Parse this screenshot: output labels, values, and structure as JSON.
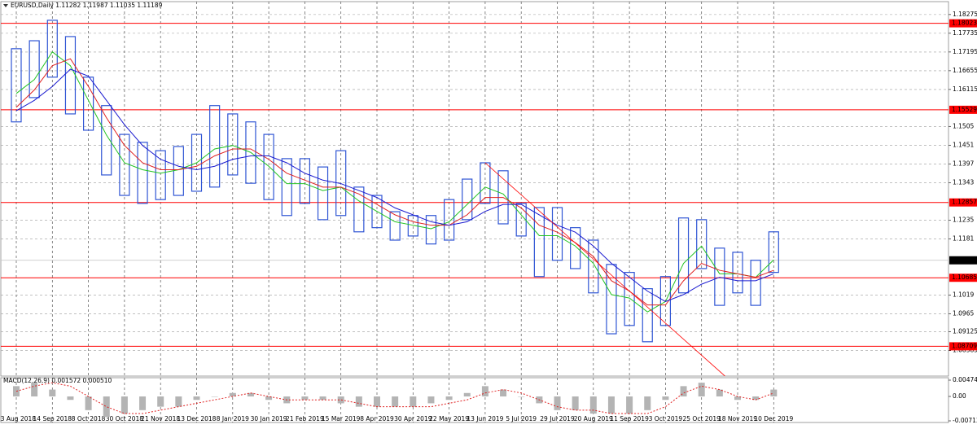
{
  "chart_data": [
    {
      "type": "hilo",
      "title": "EURUSD,Daily  1.11282 1.11987 1.11035 1.11189",
      "categories": [
        "23 Aug 2018",
        null,
        "14 Sep 2018",
        null,
        "8 Oct 2018",
        null,
        "30 Oct 2018",
        null,
        "21 Nov 2018",
        null,
        "13 Dec 2018",
        null,
        "8 Jan 2019",
        null,
        "30 Jan 2019",
        null,
        "21 Feb 2019",
        null,
        "15 Mar 2019",
        null,
        "8 Apr 2019",
        null,
        "30 Apr 2019",
        null,
        "22 May 2019",
        null,
        "13 Jun 2019",
        null,
        "5 Jul 2019",
        null,
        "29 Jul 2019",
        null,
        "20 Aug 2019",
        null,
        "11 Sep 2019",
        null,
        "3 Oct 2019",
        null,
        "25 Oct 2019",
        null,
        "18 Nov 2019",
        null,
        "10 Dec 2019"
      ],
      "high": [
        1.1729,
        1.1752,
        1.1811,
        1.1764,
        1.1647,
        1.1565,
        1.1482,
        1.1459,
        1.1435,
        1.1447,
        1.1482,
        1.1565,
        1.1541,
        1.1518,
        1.1482,
        1.1412,
        1.1412,
        1.1388,
        1.1435,
        1.133,
        1.1306,
        1.1259,
        1.1248,
        1.1248,
        1.1294,
        1.1353,
        1.14,
        1.1377,
        1.1283,
        1.1271,
        1.1271,
        1.1213,
        1.1177,
        1.1107,
        1.1084,
        1.1037,
        1.1072,
        1.1241,
        1.1236,
        1.1154,
        1.1142,
        1.1119,
        1.1201
      ],
      "low": [
        1.1518,
        1.1588,
        1.1647,
        1.1541,
        1.1494,
        1.1365,
        1.1306,
        1.1283,
        1.1294,
        1.1306,
        1.1318,
        1.133,
        1.1365,
        1.1341,
        1.1294,
        1.1248,
        1.1283,
        1.1236,
        1.1248,
        1.1201,
        1.1213,
        1.1177,
        1.1189,
        1.1166,
        1.1177,
        1.1236,
        1.1283,
        1.1224,
        1.1189,
        1.1072,
        1.1119,
        1.1095,
        1.1025,
        1.0907,
        1.0931,
        1.0884,
        1.0931,
        1.1025,
        1.1095,
        1.0989,
        1.1025,
        1.0989,
        1.1084
      ],
      "color": "#2f55d4",
      "series": [
        {
          "color": "#22c322",
          "values": [
            1.16,
            1.164,
            1.172,
            1.168,
            1.158,
            1.148,
            1.14,
            1.138,
            1.137,
            1.138,
            1.14,
            1.144,
            1.145,
            1.143,
            1.139,
            1.134,
            1.134,
            1.132,
            1.133,
            1.129,
            1.126,
            1.123,
            1.122,
            1.121,
            1.123,
            1.128,
            1.133,
            1.131,
            1.125,
            1.119,
            1.119,
            1.116,
            1.111,
            1.102,
            1.101,
            1.097,
            1.1,
            1.111,
            1.116,
            1.108,
            1.108,
            1.107,
            1.112
          ]
        },
        {
          "color": "#e02020",
          "values": [
            1.156,
            1.161,
            1.168,
            1.17,
            1.162,
            1.153,
            1.145,
            1.14,
            1.138,
            1.138,
            1.139,
            1.142,
            1.144,
            1.144,
            1.141,
            1.137,
            1.135,
            1.133,
            1.133,
            1.131,
            1.128,
            1.125,
            1.123,
            1.122,
            1.122,
            1.125,
            1.13,
            1.13,
            1.127,
            1.122,
            1.12,
            1.117,
            1.113,
            1.106,
            1.103,
            1.099,
            1.099,
            1.106,
            1.111,
            1.109,
            1.108,
            1.107,
            1.109
          ]
        },
        {
          "color": "#1a1ad0",
          "values": [
            1.155,
            1.158,
            1.162,
            1.167,
            1.165,
            1.158,
            1.151,
            1.145,
            1.141,
            1.139,
            1.138,
            1.139,
            1.141,
            1.142,
            1.142,
            1.14,
            1.137,
            1.135,
            1.134,
            1.132,
            1.13,
            1.127,
            1.125,
            1.123,
            1.122,
            1.123,
            1.126,
            1.128,
            1.128,
            1.125,
            1.122,
            1.12,
            1.116,
            1.111,
            1.107,
            1.103,
            1.1,
            1.102,
            1.105,
            1.107,
            1.106,
            1.106,
            1.108
          ]
        }
      ],
      "levels": [
        1.18023,
        1.15529,
        1.12857,
        1.10685,
        1.08709
      ],
      "level_color": "#ff0000",
      "current_price": 1.11189,
      "trendline": {
        "from": [
          26,
          1.14
        ],
        "to": [
          39.3,
          1.0785
        ]
      },
      "ylim": [
        1.0785,
        1.1846
      ],
      "yticks": [
        1.18275,
        1.17735,
        1.17195,
        1.16655,
        1.16115,
        1.1505,
        1.1451,
        1.1397,
        1.1343,
        1.1235,
        1.1181,
        1.1019,
        1.0965,
        1.09125,
        1.08585
      ],
      "grid": true
    },
    {
      "type": "macd",
      "title": "MACD(12,26,9) 0.001572 0.000510",
      "histogram": [
        0.003,
        0.004,
        0.002,
        -0.001,
        -0.004,
        -0.006,
        -0.005,
        -0.004,
        -0.003,
        -0.003,
        -0.001,
        0,
        0.001,
        0.001,
        -0.001,
        -0.002,
        -0.001,
        -0.001,
        -0.002,
        -0.003,
        -0.003,
        -0.003,
        -0.003,
        -0.002,
        -0.001,
        0.001,
        0.003,
        0.002,
        0,
        -0.002,
        -0.004,
        -0.004,
        -0.005,
        -0.005,
        -0.005,
        -0.004,
        -0.001,
        0.003,
        0.004,
        0.002,
        -0.001,
        -0.001,
        0.002
      ],
      "signal": [
        0.0015,
        0.003,
        0.004,
        0.003,
        0,
        -0.003,
        -0.005,
        -0.005,
        -0.004,
        -0.003,
        -0.002,
        -0.001,
        0,
        0.001,
        0,
        -0.001,
        -0.001,
        -0.001,
        -0.001,
        -0.002,
        -0.003,
        -0.003,
        -0.003,
        -0.003,
        -0.002,
        -0.001,
        0.001,
        0.002,
        0.001,
        -0.001,
        -0.003,
        -0.004,
        -0.004,
        -0.005,
        -0.005,
        -0.005,
        -0.003,
        0.001,
        0.003,
        0.002,
        0,
        -0.001,
        0.001
      ],
      "histogram_color": "#b4b4b4",
      "signal_color": "#e02020",
      "ylim": [
        -0.007123,
        0.004747
      ],
      "yticks": [
        0.004747,
        {
          "value": 0,
          "label": "0.00"
        },
        -0.007123
      ]
    }
  ]
}
